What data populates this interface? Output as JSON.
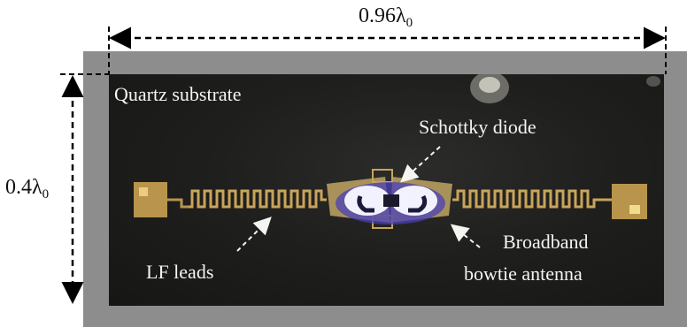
{
  "labels": {
    "width_dimension": {
      "main": "0.96λ",
      "sub": "0"
    },
    "height_dimension": {
      "main": "0.4λ",
      "sub": "0"
    },
    "substrate": "Quartz substrate",
    "diode": "Schottky diode",
    "leads": "LF leads",
    "antenna_line1": "Broadband",
    "antenna_line2": "bowtie antenna"
  },
  "colors": {
    "frame": "#8d8d8d",
    "substrate": "#1e1e1c",
    "metal": "#c9a45a",
    "diode_glow": "#f2f2ff",
    "diode_edge": "#4a3fb8"
  }
}
